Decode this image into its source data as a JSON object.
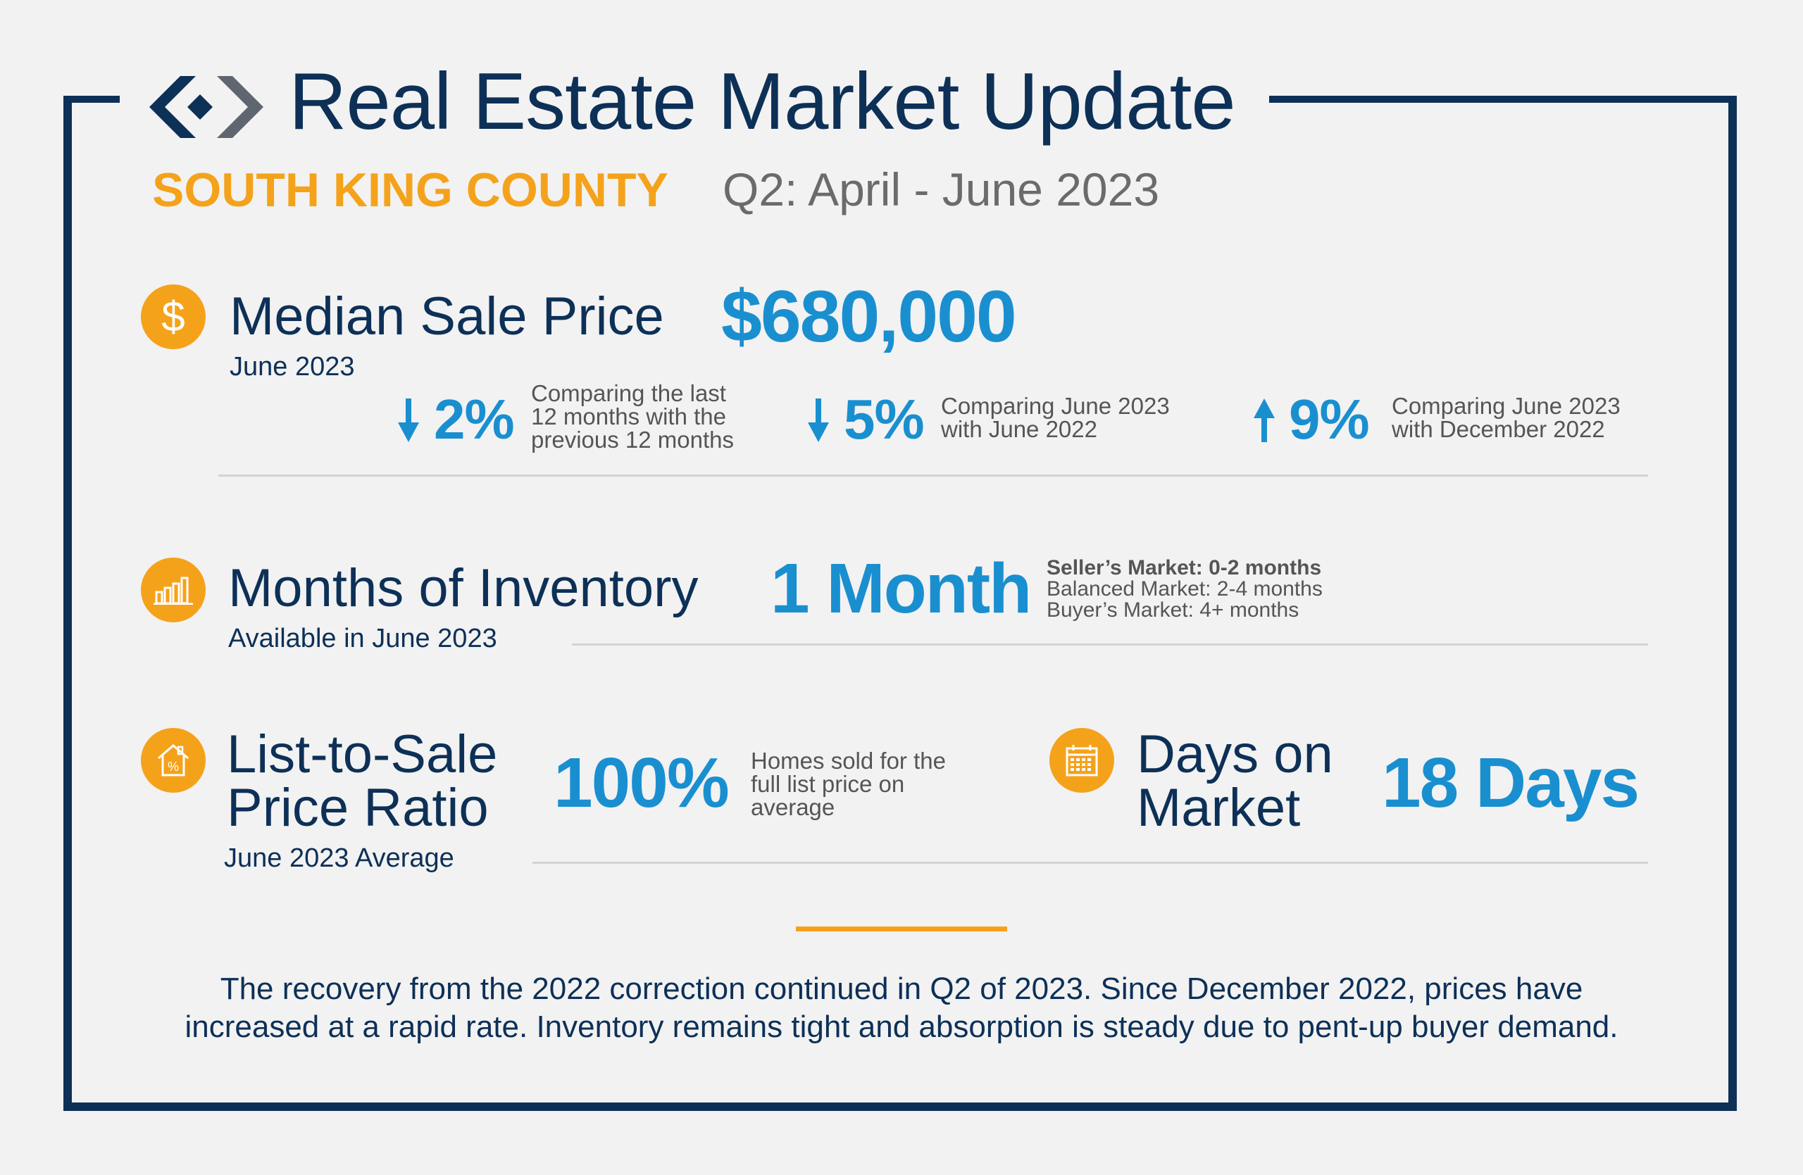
{
  "header": {
    "title": "Real Estate Market Update",
    "county": "SOUTH KING COUNTY",
    "quarter": "Q2: April - June 2023"
  },
  "median_sale_price": {
    "title": "Median Sale Price",
    "subtitle": "June 2023",
    "value": "$680,000",
    "icon": "dollar-icon",
    "comparisons": [
      {
        "direction": "down",
        "value": "2%",
        "note_lines": [
          "Comparing the last",
          "12 months with the",
          "previous 12 months"
        ]
      },
      {
        "direction": "down",
        "value": "5%",
        "note_lines": [
          "Comparing June 2023",
          "with June 2022"
        ]
      },
      {
        "direction": "up",
        "value": "9%",
        "note_lines": [
          "Comparing June 2023",
          "with December 2022"
        ]
      }
    ]
  },
  "months_of_inventory": {
    "title": "Months of Inventory",
    "subtitle": "Available in June 2023",
    "value": "1 Month",
    "icon": "bar-chart-icon",
    "legend": {
      "sellers": "Seller’s Market: 0-2 months",
      "balanced": "Balanced Market: 2-4 months",
      "buyers": "Buyer’s Market: 4+ months"
    }
  },
  "list_to_sale": {
    "title_line1": "List-to-Sale",
    "title_line2": "Price Ratio",
    "subtitle": "June 2023 Average",
    "value": "100%",
    "icon": "house-percent-icon",
    "note_lines": [
      "Homes sold for the",
      "full list price on",
      "average"
    ]
  },
  "days_on_market": {
    "title_line1": "Days on",
    "title_line2": "Market",
    "value": "18 Days",
    "icon": "calendar-icon"
  },
  "footer": {
    "line1": "The recovery from the 2022 correction continued in Q2 of 2023. Since December 2022, prices have",
    "line2": "increased at a rapid rate. Inventory remains tight and absorption is steady due to pent-up buyer demand."
  },
  "colors": {
    "navy": "#0d3057",
    "accent": "#f5a21b",
    "blue": "#1a8fd0",
    "gray_text": "#6b6b6b"
  }
}
